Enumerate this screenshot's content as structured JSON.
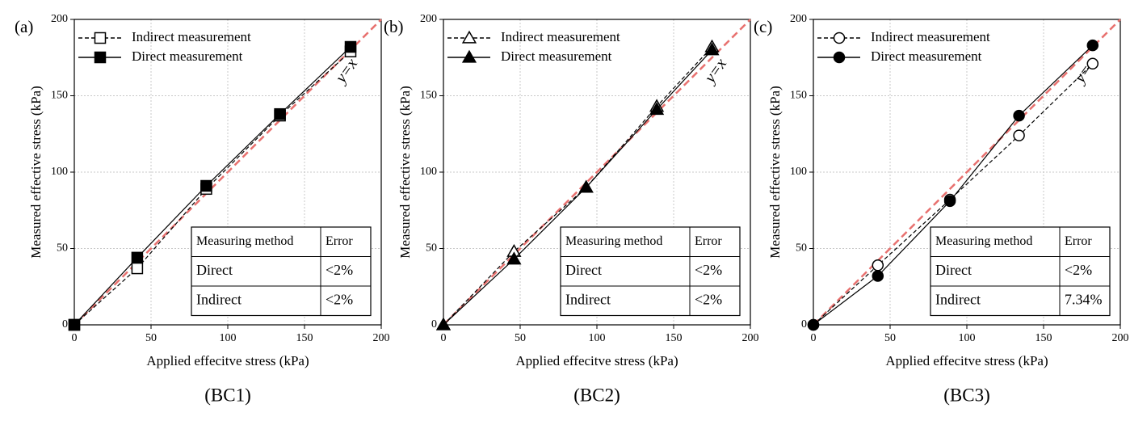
{
  "chart_data": [
    {
      "type": "line",
      "panel_label": "(a)",
      "caption": "(BC1)",
      "xlabel": "Applied effecitve stress (kPa)",
      "ylabel": "Measured effective stress (kPa)",
      "xlim": [
        0,
        200
      ],
      "ylim": [
        0,
        200
      ],
      "xticks": [
        0,
        50,
        100,
        150,
        200
      ],
      "yticks": [
        0,
        50,
        100,
        150,
        200
      ],
      "grid": true,
      "legend": "upper left",
      "reference_line": {
        "label": "y=x",
        "color": "#e8716f"
      },
      "x": [
        0,
        41,
        86,
        134,
        180
      ],
      "series": [
        {
          "name": "Indirect measurement",
          "color": "#000000",
          "marker": "square",
          "filled": false,
          "line_style": "dashed",
          "values": [
            0,
            37,
            89,
            137,
            179
          ]
        },
        {
          "name": "Direct measurement",
          "color": "#000000",
          "marker": "square",
          "filled": true,
          "line_style": "solid",
          "values": [
            0,
            44,
            91,
            138,
            182
          ]
        }
      ],
      "table": {
        "header": [
          "Measuring method",
          "Error"
        ],
        "rows": [
          [
            "Direct",
            "<2%"
          ],
          [
            "Indirect",
            "<2%"
          ]
        ]
      }
    },
    {
      "type": "line",
      "panel_label": "(b)",
      "caption": "(BC2)",
      "xlabel": "Applied effecitve stress (kPa)",
      "ylabel": "Measured effective stress (kPa)",
      "xlim": [
        0,
        200
      ],
      "ylim": [
        0,
        200
      ],
      "xticks": [
        0,
        50,
        100,
        150,
        200
      ],
      "yticks": [
        0,
        50,
        100,
        150,
        200
      ],
      "grid": true,
      "legend": "upper left",
      "reference_line": {
        "label": "y=x",
        "color": "#e8716f"
      },
      "x": [
        0,
        46,
        93,
        139,
        175
      ],
      "series": [
        {
          "name": "Indirect measurement",
          "color": "#000000",
          "marker": "triangle",
          "filled": false,
          "line_style": "dashed",
          "values": [
            0,
            48,
            90,
            143,
            182
          ]
        },
        {
          "name": "Direct measurement",
          "color": "#000000",
          "marker": "triangle",
          "filled": true,
          "line_style": "solid",
          "values": [
            0,
            43,
            90,
            141,
            180
          ]
        }
      ],
      "table": {
        "header": [
          "Measuring method",
          "Error"
        ],
        "rows": [
          [
            "Direct",
            "<2%"
          ],
          [
            "Indirect",
            "<2%"
          ]
        ]
      }
    },
    {
      "type": "line",
      "panel_label": "(c)",
      "caption": "(BC3)",
      "xlabel": "Applied effecitve stress (kPa)",
      "ylabel": "Measured effective stress (kPa)",
      "xlim": [
        0,
        200
      ],
      "ylim": [
        0,
        200
      ],
      "xticks": [
        0,
        50,
        100,
        150,
        200
      ],
      "yticks": [
        0,
        50,
        100,
        150,
        200
      ],
      "grid": true,
      "legend": "upper left",
      "reference_line": {
        "label": "y=x",
        "color": "#e8716f"
      },
      "x": [
        0,
        42,
        89,
        134,
        182
      ],
      "series": [
        {
          "name": "Indirect measurement",
          "color": "#000000",
          "marker": "circle",
          "filled": false,
          "line_style": "dashed",
          "values": [
            0,
            39,
            82,
            124,
            171
          ]
        },
        {
          "name": "Direct measurement",
          "color": "#000000",
          "marker": "circle",
          "filled": true,
          "line_style": "solid",
          "values": [
            0,
            32,
            81,
            137,
            183
          ]
        }
      ],
      "table": {
        "header": [
          "Measuring method",
          "Error"
        ],
        "rows": [
          [
            "Direct",
            "<2%"
          ],
          [
            "Indirect",
            "7.34%"
          ]
        ]
      }
    }
  ]
}
